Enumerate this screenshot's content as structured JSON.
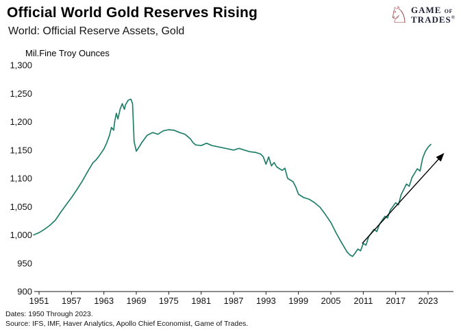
{
  "header": {
    "title": "Official World Gold Reserves Rising",
    "subtitle": "World: Official Reserve Assets, Gold"
  },
  "logo": {
    "line1": "GAME",
    "line1b": "OF",
    "line2": "TRADES",
    "registered": "®",
    "color": "#8e2f33"
  },
  "footer": {
    "dates": "Dates: 1950 Through 2023.",
    "source": "Source: IFS, IMF, Haver Analytics, Apollo Chief Economist, Game of Trades."
  },
  "chart_data": {
    "type": "line",
    "title": "Official World Gold Reserves Rising",
    "subtitle": "World: Official Reserve Assets, Gold",
    "xlabel": "",
    "ylabel": "Mil.Fine Troy Ounces",
    "ylim": [
      900,
      1300
    ],
    "xlim": [
      1950,
      2024
    ],
    "grid": false,
    "legend": "none",
    "line_color": "#1f7e69",
    "axis_color": "#1a1a1a",
    "xticks": [
      1951,
      1957,
      1963,
      1969,
      1975,
      1981,
      1987,
      1993,
      1999,
      2005,
      2011,
      2017,
      2023
    ],
    "ytick_values": [
      900,
      950,
      1000,
      1050,
      1100,
      1150,
      1200,
      1250,
      1300
    ],
    "ytick_labels": [
      "900",
      "950",
      "1,000",
      "1,050",
      "1,100",
      "1,150",
      "1,200",
      "1,250",
      "1,300"
    ],
    "series": [
      {
        "name": "World Official Reserve Assets, Gold (Mil. Fine Troy Ounces)",
        "x": [
          1950,
          1951,
          1952,
          1953,
          1954,
          1955,
          1956,
          1957,
          1958,
          1959,
          1960,
          1961,
          1961.5,
          1962,
          1963,
          1963.5,
          1964,
          1964.4,
          1964.8,
          1965,
          1965.3,
          1965.6,
          1966,
          1966.4,
          1966.8,
          1967,
          1967.5,
          1968,
          1968.3,
          1968.6,
          1969,
          1969.5,
          1970,
          1971,
          1972,
          1973,
          1974,
          1975,
          1976,
          1977,
          1978,
          1979,
          1979.5,
          1980,
          1981,
          1982,
          1983,
          1984,
          1985,
          1986,
          1987,
          1988,
          1989,
          1990,
          1991,
          1992,
          1992.5,
          1993,
          1993.5,
          1994,
          1994.5,
          1995,
          1996,
          1996.5,
          1997,
          1998,
          1998.5,
          1999,
          2000,
          2001,
          2002,
          2003,
          2004,
          2005,
          2006,
          2007,
          2007.5,
          2008,
          2008.5,
          2009,
          2009.5,
          2010,
          2010.5,
          2011,
          2011.5,
          2012,
          2013,
          2013.5,
          2014,
          2015,
          2015.5,
          2016,
          2017,
          2017.5,
          2018,
          2019,
          2019.5,
          2020,
          2021,
          2021.5,
          2022,
          2022.5,
          2023,
          2023.5
        ],
        "values": [
          1000,
          1004,
          1010,
          1017,
          1026,
          1040,
          1053,
          1066,
          1080,
          1095,
          1112,
          1128,
          1132,
          1138,
          1152,
          1162,
          1175,
          1190,
          1185,
          1200,
          1215,
          1205,
          1222,
          1232,
          1222,
          1230,
          1238,
          1240,
          1232,
          1165,
          1148,
          1155,
          1163,
          1176,
          1181,
          1178,
          1184,
          1186,
          1185,
          1181,
          1178,
          1170,
          1163,
          1159,
          1158,
          1162,
          1158,
          1156,
          1154,
          1152,
          1150,
          1153,
          1150,
          1147,
          1146,
          1143,
          1138,
          1125,
          1138,
          1122,
          1128,
          1120,
          1114,
          1118,
          1100,
          1094,
          1085,
          1072,
          1066,
          1063,
          1057,
          1049,
          1036,
          1022,
          1003,
          986,
          978,
          970,
          965,
          962,
          968,
          975,
          972,
          985,
          982,
          997,
          1010,
          1006,
          1019,
          1033,
          1030,
          1044,
          1057,
          1053,
          1071,
          1090,
          1086,
          1101,
          1117,
          1113,
          1136,
          1148,
          1155,
          1160
        ]
      }
    ],
    "annotation_arrow": {
      "x1": 2010.8,
      "y1": 985,
      "x2": 2025.8,
      "y2": 1143,
      "color": "#000000"
    }
  }
}
